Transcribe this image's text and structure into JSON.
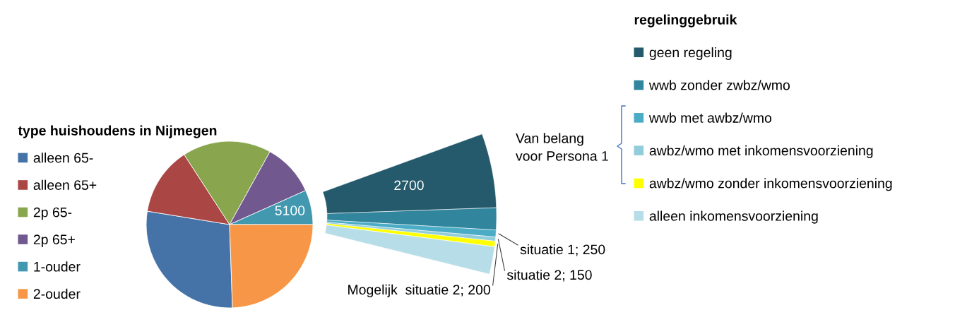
{
  "chart_data": [
    {
      "type": "pie",
      "legend_title": "type huishoudens in Nijmegen",
      "legend": "left",
      "categories": [
        "alleen 65-",
        "alleen 65+",
        "2p 65-",
        "2p 65+",
        "1-ouder",
        "2-ouder"
      ],
      "values": [
        21400,
        10100,
        13100,
        7800,
        5100,
        18600
      ],
      "colors": [
        "#4572a7",
        "#aa4643",
        "#89a54e",
        "#71588f",
        "#4198af",
        "#f79646"
      ],
      "value_labels": [
        null,
        null,
        null,
        null,
        "5100",
        null
      ]
    },
    {
      "type": "donut",
      "legend_title": "regelinggebruik",
      "legend": "right",
      "categories": [
        "geen regeling",
        "wwb zonder zwbz/wmo",
        "wwb met awbz/wmo",
        "awbz/wmo met inkomensvoorziening",
        "awbz/wmo zonder inkomensvoorziening",
        "alleen inkomensvoorziening"
      ],
      "values": [
        2700,
        800,
        250,
        150,
        200,
        1000
      ],
      "colors": [
        "#245a6b",
        "#31859c",
        "#4bacc6",
        "#92cddc",
        "#ffff00",
        "#b7dee8"
      ],
      "value_labels": [
        "2700",
        null,
        "situatie 1; 250",
        "situatie 2; 150",
        "Mogelijk  situatie 2; 200",
        null
      ],
      "annotations": [
        "Van belang\nvoor Persona 1"
      ]
    }
  ]
}
